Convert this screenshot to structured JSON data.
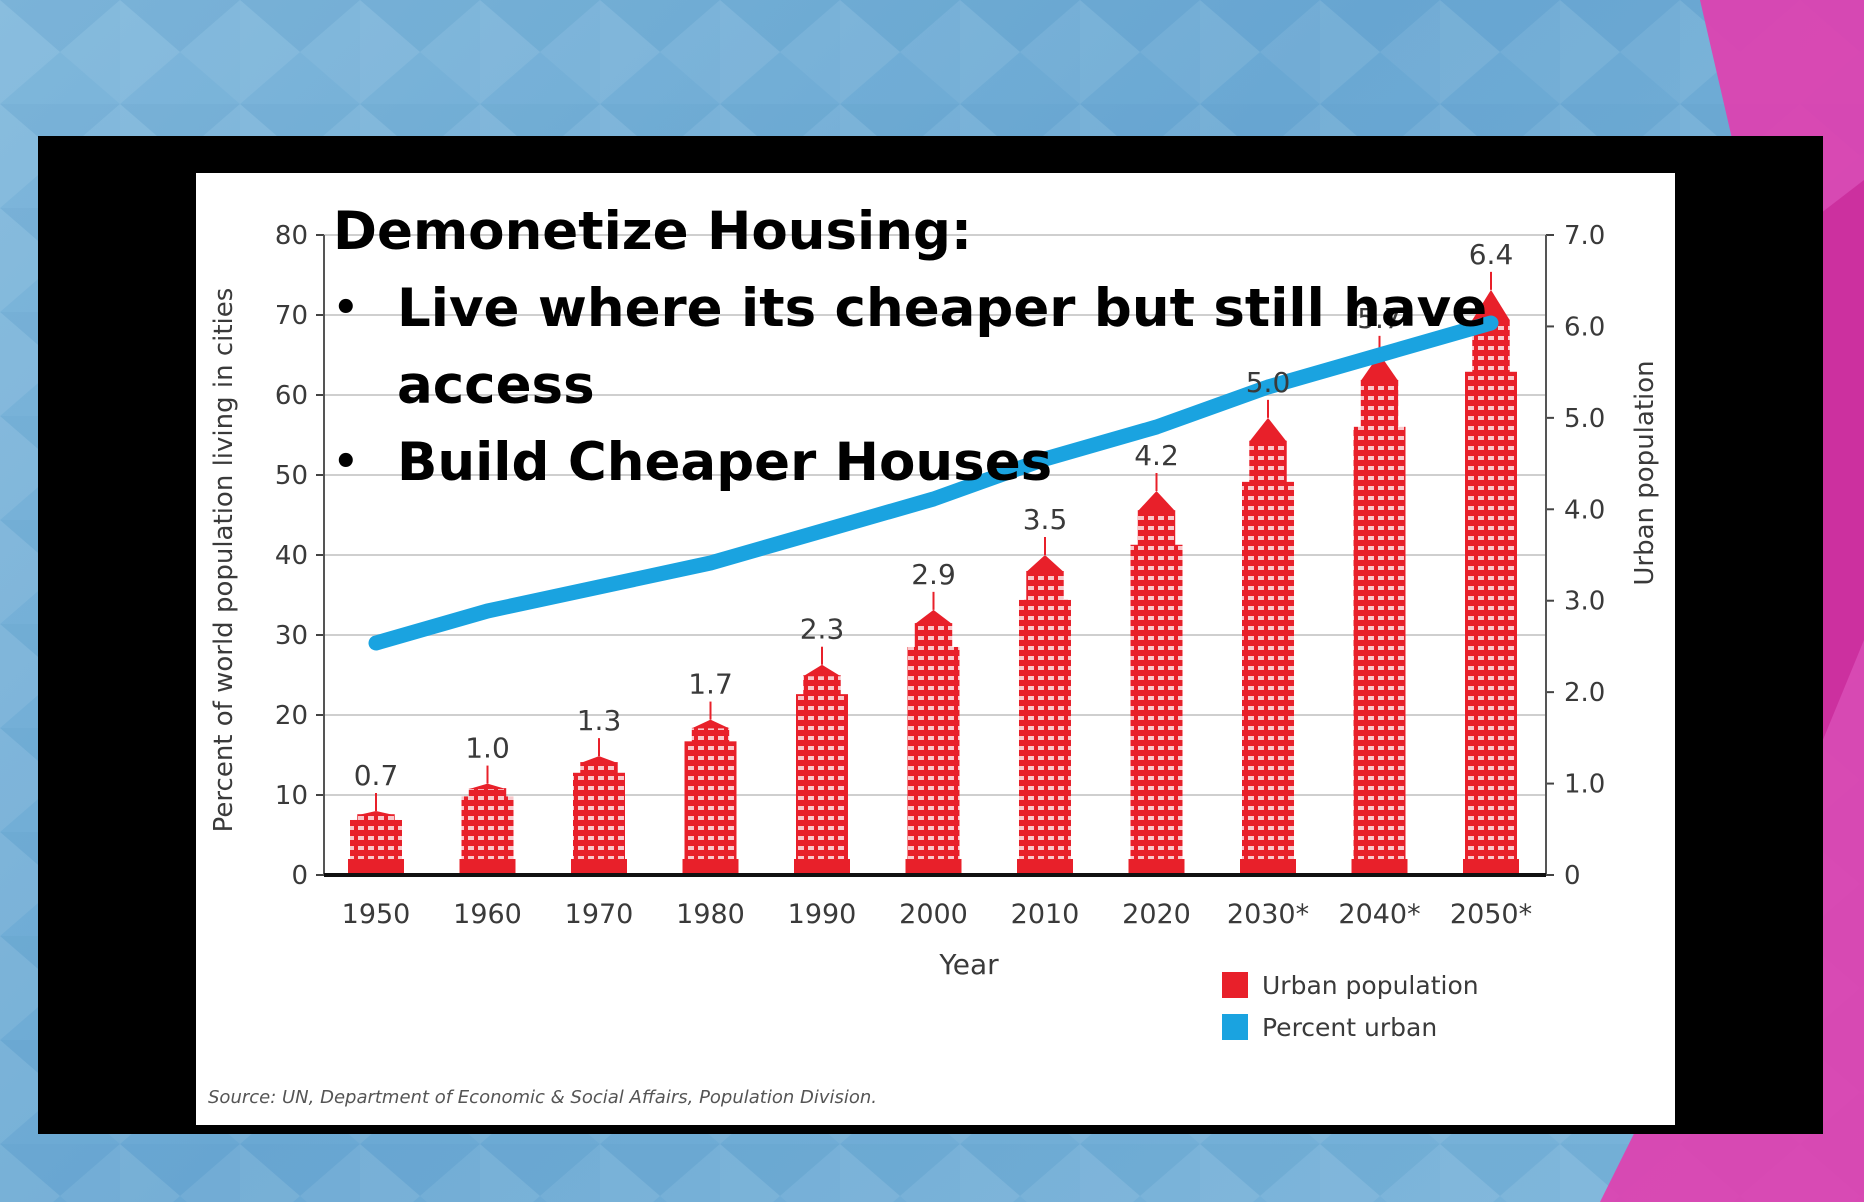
{
  "slide": {
    "headline": "Demonetize Housing:",
    "bullets": [
      "Live where its cheaper but still have access",
      "Build Cheaper Houses"
    ],
    "source": "Source: UN, Department of Economic & Social Affairs, Population Division."
  },
  "colors": {
    "background": "#7fb7db",
    "accent_magenta": "#e040b0",
    "urban_population": "#e8202a",
    "percent_urban": "#1aa3e0"
  },
  "chart_data": {
    "type": "bar",
    "categories": [
      "1950",
      "1960",
      "1970",
      "1980",
      "1990",
      "2000",
      "2010",
      "2020",
      "2030*",
      "2040*",
      "2050*"
    ],
    "xlabel": "Year",
    "ylabel_left": "Percent of world population living in cities",
    "ylabel_right": "Urban population",
    "ylim_left": [
      0,
      80
    ],
    "ylim_right": [
      0,
      7.0
    ],
    "left_ticks": [
      "0",
      "10",
      "20",
      "30",
      "40",
      "50",
      "60",
      "70",
      "80"
    ],
    "right_ticks": [
      "0",
      "1.0",
      "2.0",
      "3.0",
      "4.0",
      "5.0",
      "6.0",
      "7.0"
    ],
    "grid": true,
    "legend_position": "bottom-right",
    "series": [
      {
        "name": "Urban population",
        "type": "bar",
        "axis": "right",
        "values": [
          0.7,
          1.0,
          1.3,
          1.7,
          2.3,
          2.9,
          3.5,
          4.2,
          5.0,
          5.7,
          6.4
        ],
        "labels": [
          "0.7",
          "1.0",
          "1.3",
          "1.7",
          "2.3",
          "2.9",
          "3.5",
          "4.2",
          "5.0",
          "5.7",
          "6.4"
        ]
      },
      {
        "name": "Percent urban",
        "type": "line",
        "axis": "left",
        "values": [
          29,
          33,
          36,
          39,
          43,
          47,
          52,
          56,
          61,
          65,
          69
        ]
      }
    ]
  }
}
